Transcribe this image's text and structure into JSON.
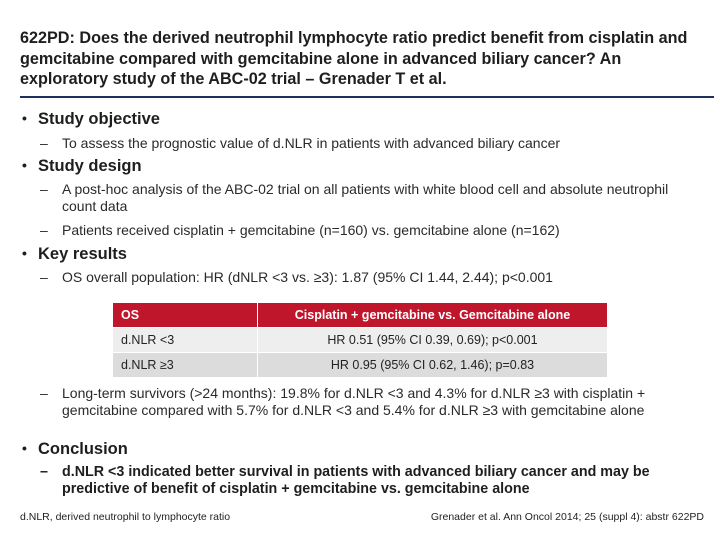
{
  "title": "622PD: Does the derived neutrophil lymphocyte ratio predict benefit from cisplatin and gemcitabine compared with gemcitabine alone in advanced biliary cancer? An exploratory study of the ABC-02 trial – Grenader T et al.",
  "sections": {
    "objective": {
      "heading": "Study objective",
      "points": [
        "To assess the prognostic value of d.NLR in patients with advanced biliary cancer"
      ]
    },
    "design": {
      "heading": "Study design",
      "points": [
        "A post-hoc analysis of the ABC-02 trial on all patients with white blood cell and absolute neutrophil count data",
        "Patients received cisplatin + gemcitabine (n=160) vs. gemcitabine alone (n=162)"
      ]
    },
    "results": {
      "heading": "Key results",
      "points": [
        "OS overall population: HR (dNLR <3 vs. ≥3): 1.87 (95% CI 1.44, 2.44); p<0.001",
        "Long-term survivors (>24 months): 19.8% for d.NLR <3 and 4.3% for d.NLR ≥3 with cisplatin + gemcitabine compared with 5.7% for d.NLR <3 and 5.4% for d.NLR ≥3 with gemcitabine alone"
      ],
      "table": {
        "headers": [
          "OS",
          "Cisplatin + gemcitabine vs. Gemcitabine alone"
        ],
        "rows": [
          [
            "d.NLR <3",
            "HR 0.51 (95% CI 0.39, 0.69); p<0.001"
          ],
          [
            "d.NLR ≥3",
            "HR 0.95 (95% CI 0.62, 1.46); p=0.83"
          ]
        ]
      }
    },
    "conclusion": {
      "heading": "Conclusion",
      "points": [
        "d.NLR <3 indicated better survival in patients with advanced biliary cancer and may be predictive of benefit of cisplatin + gemcitabine vs. gemcitabine alone"
      ]
    }
  },
  "footer": {
    "left": "d.NLR, derived neutrophil to lymphocyte ratio",
    "right": "Grenader et al. Ann Oncol 2014; 25 (suppl 4): abstr 622PD"
  },
  "colors": {
    "accent": "#c0162c",
    "rule": "#1f2f5e"
  }
}
